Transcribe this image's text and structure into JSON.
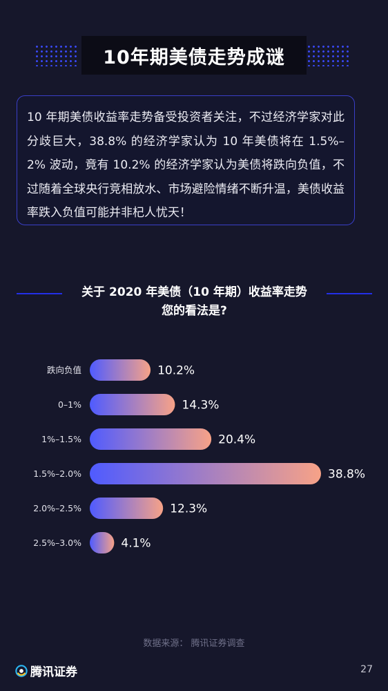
{
  "page": {
    "title": "10年期美债走势成谜",
    "intro": "10 年期美债收益率走势备受投资者关注，不过经济学家对此分歧巨大，38.8% 的经济学家认为 10 年美债将在 1.5%–2% 波动，竟有 10.2% 的经济学家认为美债将跌向负值，不过随着全球央行竞相放水、市场避险情绪不断升温，美债收益率跌入负值可能并非杞人忧天！",
    "question_line1": "关于 2020 年美债（10 年期）收益率走势",
    "question_line2": "您的看法是?",
    "source": "数据来源：  腾讯证券调查",
    "brand": "腾讯证券",
    "page_number": "27"
  },
  "colors": {
    "bar_start": "#4f5bff",
    "bar_end": "#f7a287",
    "accent_line": "#2330e8",
    "dots": "#3a49ff"
  },
  "chart_data": {
    "type": "bar",
    "orientation": "horizontal",
    "title": "关于 2020 年美债（10 年期）收益率走势 您的看法是?",
    "categories": [
      "跌向负值",
      "0–1%",
      "1%–1.5%",
      "1.5%–2.0%",
      "2.0%–2.5%",
      "2.5%–3.0%"
    ],
    "values": [
      10.2,
      14.3,
      20.4,
      38.8,
      12.3,
      4.1
    ],
    "value_labels": [
      "10.2%",
      "14.3%",
      "20.4%",
      "38.8%",
      "12.3%",
      "4.1%"
    ],
    "unit": "%",
    "xlim": [
      0,
      38.8
    ],
    "grid": false,
    "legend": "none"
  }
}
